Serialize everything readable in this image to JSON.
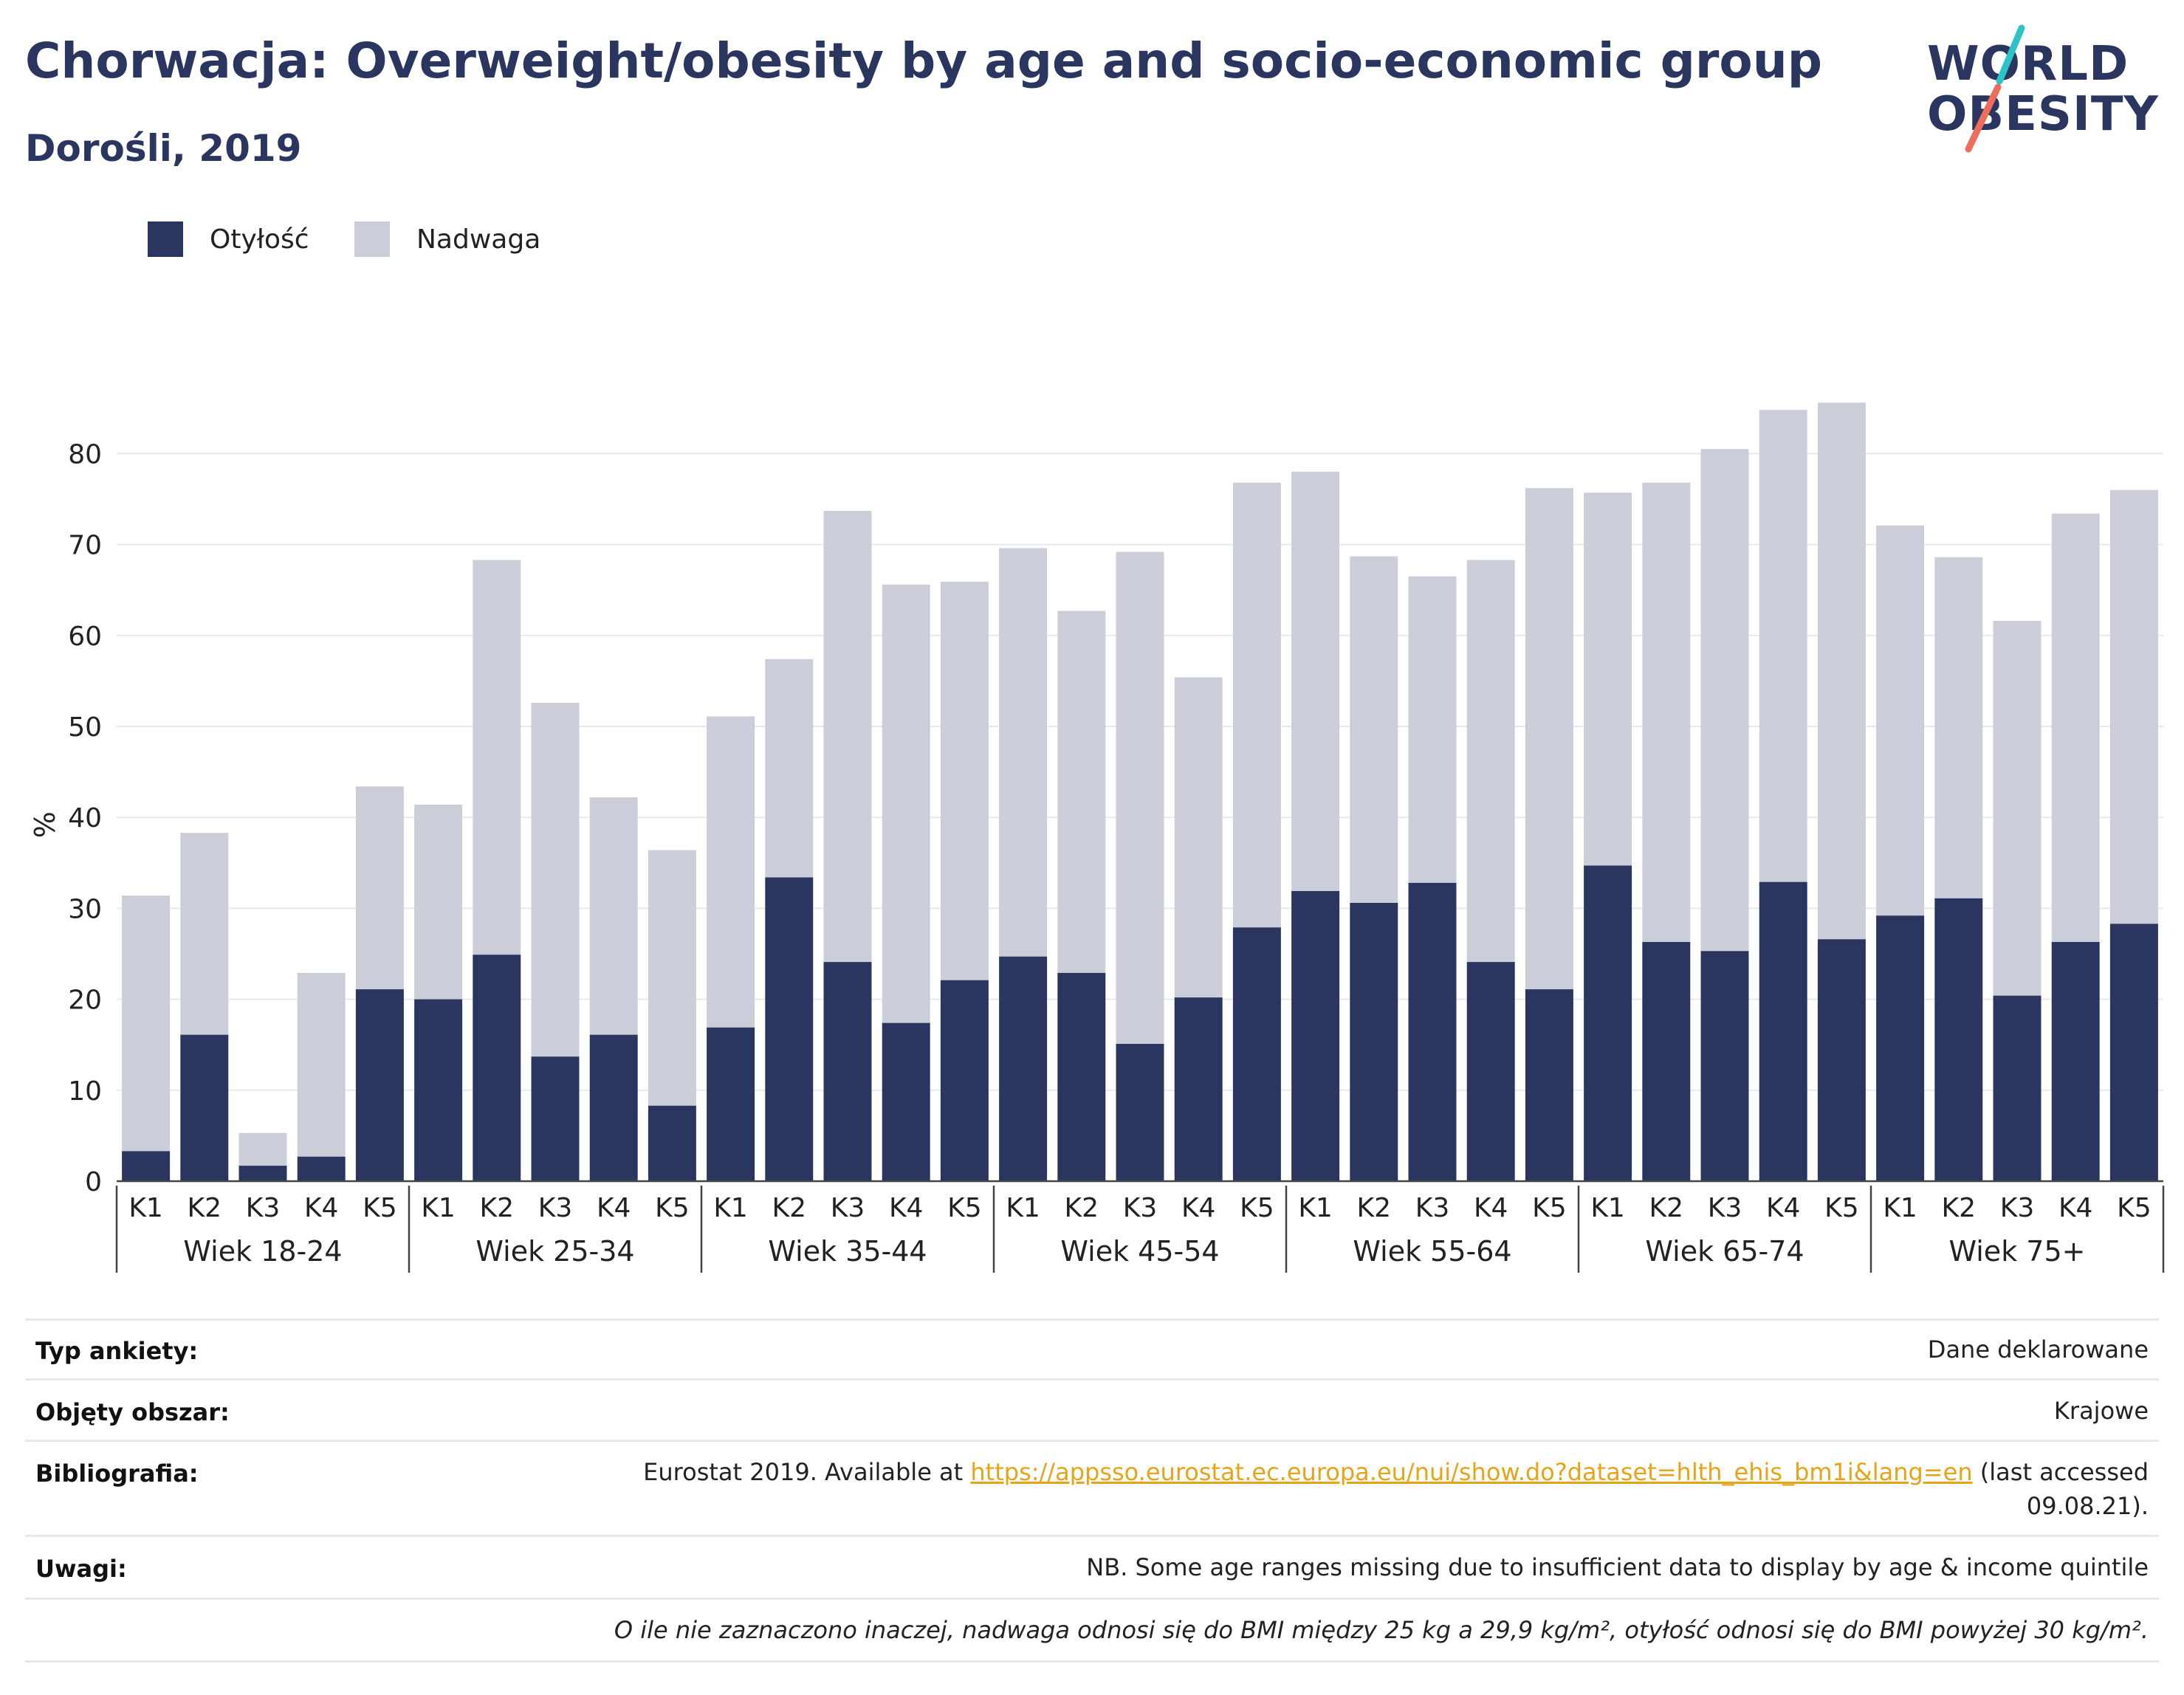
{
  "header": {
    "title": "Chorwacja: Overweight/obesity by age and socio-economic group",
    "subtitle": "Dorośli, 2019"
  },
  "logo": {
    "line1": "WORLD",
    "line2": "OBESITY",
    "accent1": "#2ec4c6",
    "accent2": "#ef6c5a"
  },
  "colors": {
    "obesity": "#2a3560",
    "overweight": "#cbcdd8"
  },
  "legend": [
    {
      "label": "Otyłość",
      "color": "#2a3560"
    },
    {
      "label": "Nadwaga",
      "color": "#cbcdd8"
    }
  ],
  "chart_data": {
    "type": "bar",
    "stacked": true,
    "ylabel": "%",
    "ylim": [
      0,
      88
    ],
    "yticks": [
      0,
      10,
      20,
      30,
      40,
      50,
      60,
      70,
      80
    ],
    "grid": true,
    "legend_position": "top-left",
    "quintiles": [
      "K1",
      "K2",
      "K3",
      "K4",
      "K5"
    ],
    "groups": [
      "Wiek 18-24",
      "Wiek 25-34",
      "Wiek 35-44",
      "Wiek 45-54",
      "Wiek 55-64",
      "Wiek 65-74",
      "Wiek 75+"
    ],
    "series": [
      {
        "name": "Otyłość",
        "values": [
          3.3,
          16.1,
          1.7,
          2.7,
          21.1,
          20.0,
          24.9,
          13.7,
          16.1,
          8.3,
          16.9,
          33.4,
          24.1,
          17.4,
          22.1,
          24.7,
          22.9,
          15.1,
          20.2,
          27.9,
          31.9,
          30.6,
          32.8,
          24.1,
          21.1,
          34.7,
          26.3,
          25.3,
          32.9,
          26.6,
          29.2,
          31.1,
          20.4,
          26.3,
          28.3
        ]
      },
      {
        "name": "Nadwaga",
        "values": [
          28.1,
          22.2,
          3.6,
          20.2,
          22.3,
          21.4,
          43.4,
          38.9,
          26.1,
          28.1,
          34.2,
          24.0,
          49.6,
          48.2,
          43.8,
          44.9,
          39.8,
          54.1,
          35.2,
          48.9,
          46.1,
          38.1,
          33.7,
          44.2,
          55.1,
          41.0,
          50.5,
          55.2,
          51.9,
          59.0,
          42.9,
          37.5,
          41.2,
          47.1,
          47.7
        ]
      }
    ]
  },
  "info": {
    "rows": [
      {
        "key": "Typ ankiety:",
        "value": "Dane deklarowane"
      },
      {
        "key": "Objęty obszar:",
        "value": "Krajowe"
      },
      {
        "key": "Bibliografia:",
        "value_prefix": "Eurostat 2019. Available at ",
        "link": "https://appsso.eurostat.ec.europa.eu/nui/show.do?dataset=hlth_ehis_bm1i&lang=en",
        "value_suffix": " (last accessed",
        "value_line2": "09.08.21)."
      },
      {
        "key": "Uwagi:",
        "value": "NB. Some age ranges missing due to insufficient data to display by age & income quintile"
      }
    ],
    "footnote": "O ile nie zaznaczono inaczej, nadwaga odnosi się do BMI między 25 kg a 29,9 kg/m², otyłość odnosi się do BMI powyżej 30 kg/m²."
  }
}
